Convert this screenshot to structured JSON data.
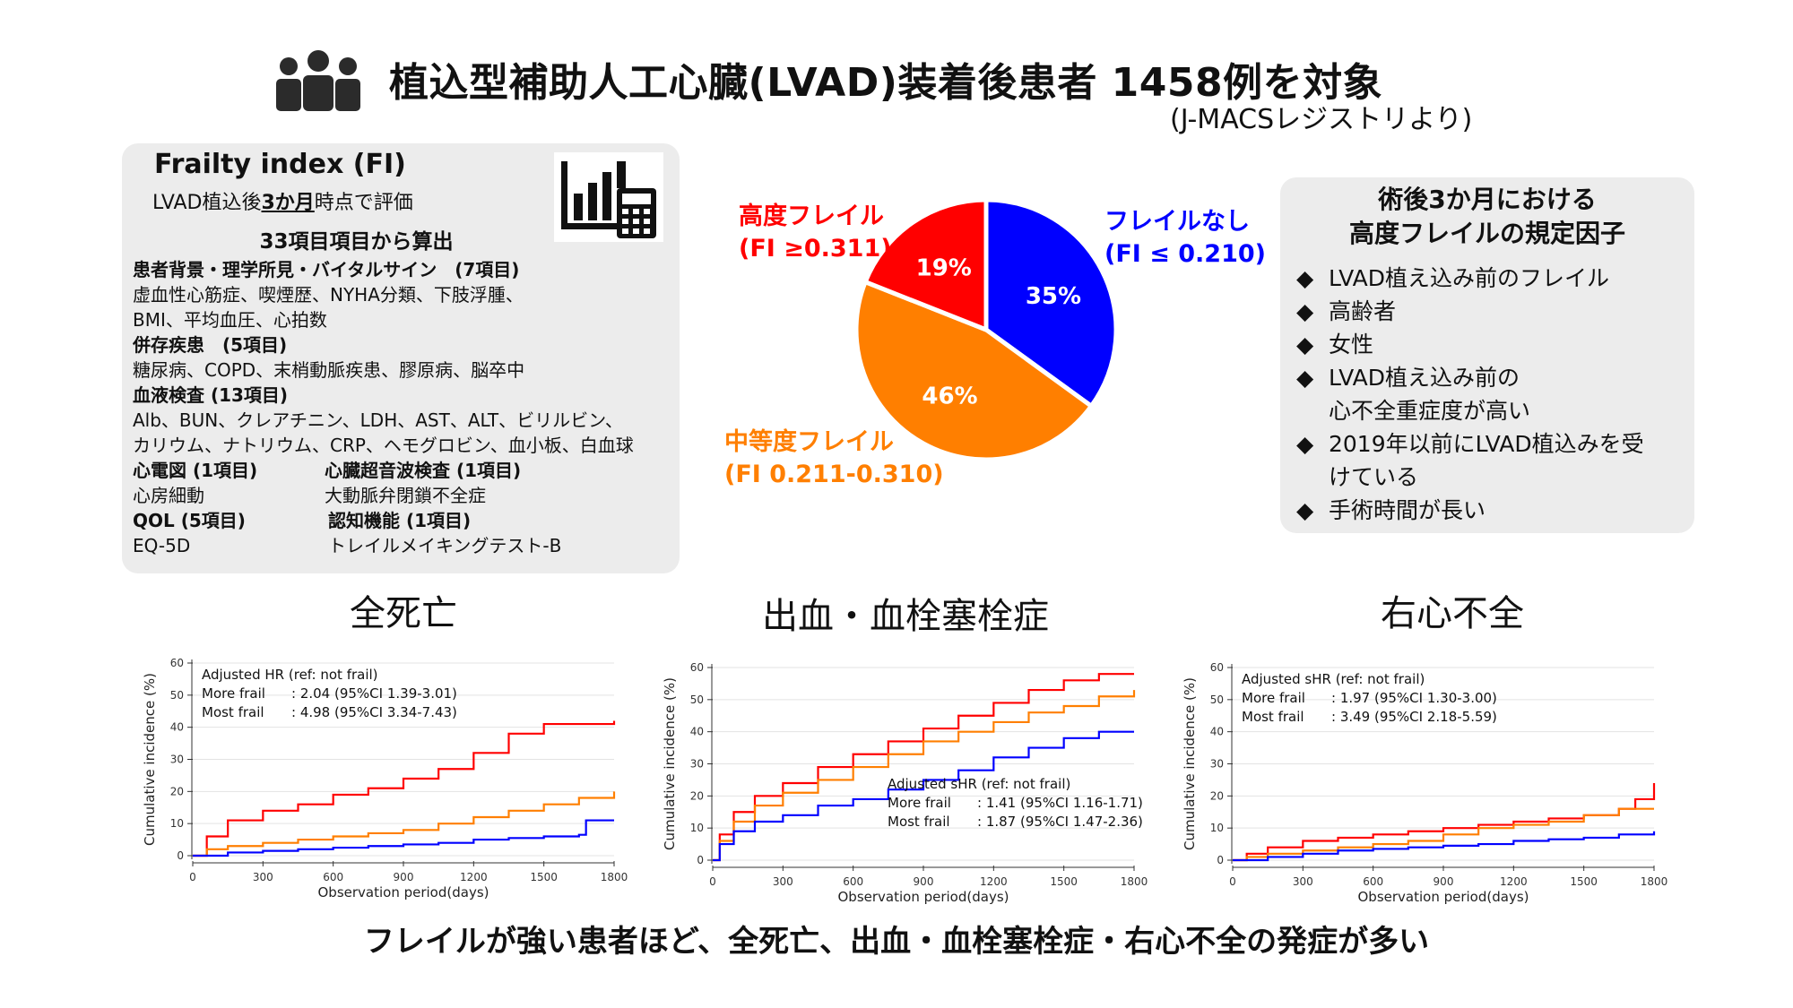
{
  "header": {
    "title": "植込型補助人工心臓(LVAD)装着後患者 1458例を対象",
    "subtitle": "(J-MACSレジストリより)",
    "icon": "people-group-icon"
  },
  "frailty_index": {
    "title": "Frailty index (FI)",
    "eval_prefix": "LVAD植込後",
    "eval_highlight": "3か月",
    "eval_suffix": "時点で評価",
    "count_label": "33項目項目から算出",
    "icon": "chart-calculator-icon",
    "cat1_head": "患者背景・理学所見・バイタルサイン　(7項目)",
    "cat1_line1": "虚血性心筋症、喫煙歴、NYHA分類、下肢浮腫、",
    "cat1_line2": "BMI、平均血圧、心拍数",
    "cat2_head": "併存疾患　(5項目)",
    "cat2_line1": "糖尿病、COPD、末梢動脈疾患、膠原病、脳卒中",
    "cat3_head": "血液検査 (13項目)",
    "cat3_line1": "Alb、BUN、クレアチニン、LDH、AST、ALT、ビリルビン、",
    "cat3_line2": "カリウム、ナトリウム、CRP、ヘモグロビン、血小板、白血球",
    "ecg_head": "心電図 (1項目)",
    "ecg_item": "心房細動",
    "echo_head": "心臓超音波検査 (1項目)",
    "echo_item": "大動脈弁閉鎖不全症",
    "qol_head": "QOL (5項目)",
    "qol_item": "EQ-5D",
    "cog_head": "認知機能 (1項目)",
    "cog_item": "トレイルメイキングテスト-B"
  },
  "determinants": {
    "title_line1": "術後3か月における",
    "title_line2": "高度フレイルの規定因子",
    "bullet": "◆",
    "items": [
      "LVAD植え込み前のフレイル",
      "高齢者",
      "女性",
      "LVAD植え込み前の",
      "心不全重症度が高い",
      "2019年以前にLVAD植込みを受",
      "けている",
      "手術時間が長い"
    ]
  },
  "colors": {
    "red": "#ff0000",
    "orange": "#ff7f00",
    "blue": "#0000ff",
    "box": "#ececec"
  },
  "chart_data": [
    {
      "type": "pie",
      "title": "",
      "slices": [
        {
          "name": "フレイルなし",
          "criteria": "(FI ≤ 0.210)",
          "value": 35,
          "label": "35%",
          "color": "#0000ff"
        },
        {
          "name": "中等度フレイル",
          "criteria": "(FI 0.211-0.310)",
          "value": 46,
          "label": "46%",
          "color": "#ff7f00"
        },
        {
          "name": "高度フレイル",
          "criteria": "(FI ≥0.311)",
          "value": 19,
          "label": "19%",
          "color": "#ff0000"
        }
      ]
    },
    {
      "type": "line",
      "title": "全死亡",
      "xlabel": "Observation period(days)",
      "ylabel": "Cumulative incidence (%)",
      "xlim": [
        0,
        1800
      ],
      "ylim": [
        0,
        60
      ],
      "xticks": [
        "0",
        "300",
        "600",
        "900",
        "1200",
        "1500",
        "1800"
      ],
      "yticks": [
        "0",
        "10",
        "20",
        "30",
        "40",
        "50",
        "60"
      ],
      "stat_lines": [
        "Adjusted HR (ref: not frail)",
        "More frail",
        ": 2.04 (95%CI 1.39-3.01)",
        "Most frail",
        ": 4.98 (95%CI 3.34-7.43)"
      ],
      "stat_position": "top-left",
      "series": [
        {
          "name": "Most frail",
          "color": "#ff0000",
          "x": [
            0,
            60,
            150,
            300,
            450,
            600,
            750,
            900,
            1050,
            1200,
            1350,
            1500,
            1800
          ],
          "y": [
            0,
            6,
            11,
            14,
            16,
            19,
            21,
            24,
            27,
            32,
            38,
            41,
            42
          ]
        },
        {
          "name": "More frail",
          "color": "#ff7f00",
          "x": [
            0,
            60,
            150,
            300,
            450,
            600,
            750,
            900,
            1050,
            1200,
            1350,
            1500,
            1650,
            1800
          ],
          "y": [
            0,
            2,
            3,
            4,
            5,
            6,
            7,
            8,
            10,
            12,
            14,
            16,
            18,
            20
          ]
        },
        {
          "name": "Not frail",
          "color": "#0000ff",
          "x": [
            0,
            150,
            300,
            450,
            600,
            750,
            900,
            1050,
            1200,
            1350,
            1500,
            1650,
            1680,
            1800
          ],
          "y": [
            0,
            1,
            1.5,
            2,
            2.5,
            3,
            3.5,
            4,
            5,
            5.5,
            6,
            6.5,
            11,
            11
          ]
        }
      ]
    },
    {
      "type": "line",
      "title": "出血・血栓塞栓症",
      "xlabel": "Observation period(days)",
      "ylabel": "Cumulative incidence (%)",
      "xlim": [
        0,
        1800
      ],
      "ylim": [
        0,
        60
      ],
      "xticks": [
        "0",
        "300",
        "600",
        "900",
        "1200",
        "1500",
        "1800"
      ],
      "yticks": [
        "0",
        "10",
        "20",
        "30",
        "40",
        "50",
        "60"
      ],
      "stat_lines": [
        "Adjusted sHR (ref: not frail)",
        "More frail",
        ": 1.41 (95%CI 1.16-1.71)",
        "Most frail",
        ": 1.87 (95%CI 1.47-2.36)"
      ],
      "stat_position": "bottom-right",
      "series": [
        {
          "name": "Most frail",
          "color": "#ff0000",
          "x": [
            0,
            30,
            90,
            180,
            300,
            450,
            600,
            750,
            900,
            1050,
            1200,
            1350,
            1500,
            1650,
            1800
          ],
          "y": [
            0,
            8,
            15,
            20,
            24,
            29,
            33,
            37,
            41,
            45,
            49,
            53,
            56,
            58,
            58
          ]
        },
        {
          "name": "More frail",
          "color": "#ff7f00",
          "x": [
            0,
            30,
            90,
            180,
            300,
            450,
            600,
            750,
            900,
            1050,
            1200,
            1350,
            1500,
            1650,
            1800
          ],
          "y": [
            0,
            6,
            12,
            17,
            21,
            25,
            29,
            33,
            37,
            40,
            43,
            46,
            48,
            51,
            53
          ]
        },
        {
          "name": "Not frail",
          "color": "#0000ff",
          "x": [
            0,
            30,
            90,
            180,
            300,
            450,
            600,
            750,
            900,
            1050,
            1200,
            1350,
            1500,
            1650,
            1800
          ],
          "y": [
            0,
            5,
            9,
            12,
            14,
            17,
            19,
            22,
            25,
            28,
            32,
            35,
            38,
            40,
            40
          ]
        }
      ]
    },
    {
      "type": "line",
      "title": "右心不全",
      "xlabel": "Observation period(days)",
      "ylabel": "Cumulative incidence (%)",
      "xlim": [
        0,
        1800
      ],
      "ylim": [
        0,
        60
      ],
      "xticks": [
        "0",
        "300",
        "600",
        "900",
        "1200",
        "1500",
        "1800"
      ],
      "yticks": [
        "0",
        "10",
        "20",
        "30",
        "40",
        "50",
        "60"
      ],
      "stat_lines": [
        "Adjusted sHR (ref: not frail)",
        "More frail",
        ": 1.97 (95%CI 1.30-3.00)",
        "Most frail",
        ": 3.49 (95%CI 2.18-5.59)"
      ],
      "stat_position": "top-left",
      "series": [
        {
          "name": "Most frail",
          "color": "#ff0000",
          "x": [
            0,
            60,
            150,
            300,
            450,
            600,
            750,
            900,
            1050,
            1200,
            1350,
            1500,
            1650,
            1720,
            1800
          ],
          "y": [
            0,
            2,
            4,
            6,
            7,
            8,
            9,
            10,
            11,
            12,
            13,
            14,
            16,
            19,
            24
          ]
        },
        {
          "name": "More frail",
          "color": "#ff7f00",
          "x": [
            0,
            60,
            150,
            300,
            450,
            600,
            750,
            900,
            1050,
            1200,
            1350,
            1500,
            1650,
            1800
          ],
          "y": [
            0,
            1,
            2,
            3,
            4,
            5,
            6,
            8,
            10,
            11,
            12,
            14,
            16,
            16
          ]
        },
        {
          "name": "Not frail",
          "color": "#0000ff",
          "x": [
            0,
            150,
            300,
            450,
            600,
            750,
            900,
            1050,
            1200,
            1350,
            1500,
            1650,
            1800
          ],
          "y": [
            0,
            1,
            2,
            3,
            3.5,
            4,
            4.5,
            5,
            6,
            6.5,
            7,
            8,
            9
          ]
        }
      ]
    }
  ],
  "conclusion": "フレイルが強い患者ほど、全死亡、出血・血栓塞栓症・右心不全の発症が多い"
}
